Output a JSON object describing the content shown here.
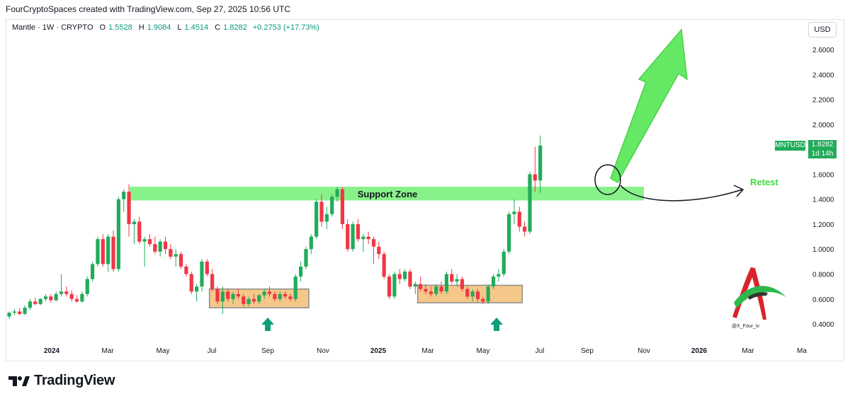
{
  "header": {
    "attribution": "FourCryptoSpaces created with TradingView.com, Sep 27, 2025 10:56 UTC"
  },
  "legend": {
    "symbol": "Mantle · 1W · CRYPTO",
    "o_label": "O",
    "o_value": "1.5528",
    "h_label": "H",
    "h_value": "1.9084",
    "l_label": "L",
    "l_value": "1.4514",
    "c_label": "C",
    "c_value": "1.8282",
    "change": "+0.2753 (+17.73%)"
  },
  "currency": "USD",
  "badge": {
    "ticker": "MNTUSD",
    "price": "1.8282",
    "countdown": "1d 14h"
  },
  "annotations": {
    "support_zone": "Support Zone",
    "retest": "Retest",
    "watermark": "@X_Four_iv"
  },
  "brand": {
    "name": "TradingView"
  },
  "colors": {
    "up": "#22ab5b",
    "down": "#f23645",
    "support_zone": "#7cf07c",
    "box": "#f5c88a",
    "arrow_green": "#5de85d",
    "teal_arrow": "#0f9d7a"
  },
  "chart_data": {
    "type": "candlestick",
    "symbol": "MNTUSD",
    "interval": "1W",
    "y_axis": {
      "ticks": [
        0.4,
        0.6,
        0.8,
        1.0,
        1.2,
        1.4,
        1.6,
        1.8,
        2.0,
        2.2,
        2.4,
        2.6
      ],
      "tick_labels": [
        "0.4000",
        "0.6000",
        "0.8000",
        "1.0000",
        "1.2000",
        "1.4000",
        "1.6000",
        "1.8000",
        "2.0000",
        "2.2000",
        "2.4000",
        "2.6000"
      ],
      "ylim": [
        0.38,
        2.76
      ]
    },
    "x_axis": {
      "tick_labels": [
        "2024",
        "Mar",
        "May",
        "Jul",
        "Sep",
        "Nov",
        "2025",
        "Mar",
        "May",
        "Jul",
        "Sep",
        "Nov",
        "2026",
        "Mar",
        "Ma"
      ],
      "bold": [
        "2024",
        "2025",
        "2026"
      ]
    },
    "support_zone": {
      "low": 1.39,
      "high": 1.5
    },
    "consolidation_boxes": [
      {
        "from_week": 39,
        "to_week": 57,
        "low": 0.53,
        "high": 0.68
      },
      {
        "from_week": 79,
        "to_week": 98,
        "low": 0.57,
        "high": 0.71
      }
    ],
    "candles": [
      [
        0.46,
        0.5,
        0.44,
        0.49
      ],
      [
        0.49,
        0.52,
        0.47,
        0.5
      ],
      [
        0.5,
        0.53,
        0.47,
        0.48
      ],
      [
        0.48,
        0.55,
        0.47,
        0.53
      ],
      [
        0.53,
        0.6,
        0.51,
        0.58
      ],
      [
        0.58,
        0.61,
        0.55,
        0.56
      ],
      [
        0.56,
        0.61,
        0.55,
        0.6
      ],
      [
        0.6,
        0.64,
        0.58,
        0.62
      ],
      [
        0.62,
        0.64,
        0.57,
        0.59
      ],
      [
        0.59,
        0.66,
        0.58,
        0.64
      ],
      [
        0.64,
        0.8,
        0.62,
        0.66
      ],
      [
        0.66,
        0.7,
        0.62,
        0.64
      ],
      [
        0.64,
        0.67,
        0.58,
        0.6
      ],
      [
        0.6,
        0.63,
        0.57,
        0.58
      ],
      [
        0.58,
        0.66,
        0.57,
        0.64
      ],
      [
        0.64,
        0.78,
        0.62,
        0.76
      ],
      [
        0.76,
        0.9,
        0.74,
        0.88
      ],
      [
        0.88,
        1.1,
        0.86,
        1.08
      ],
      [
        1.08,
        1.12,
        0.86,
        0.88
      ],
      [
        0.88,
        1.12,
        0.82,
        1.1
      ],
      [
        1.1,
        1.15,
        0.82,
        0.84
      ],
      [
        0.84,
        1.42,
        0.82,
        1.4
      ],
      [
        1.4,
        1.48,
        1.3,
        1.46
      ],
      [
        1.46,
        1.52,
        1.1,
        1.2
      ],
      [
        1.2,
        1.24,
        1.04,
        1.22
      ],
      [
        1.22,
        1.26,
        1.04,
        1.06
      ],
      [
        1.06,
        1.1,
        0.86,
        1.08
      ],
      [
        1.08,
        1.12,
        1.02,
        1.04
      ],
      [
        1.04,
        1.1,
        0.96,
        0.98
      ],
      [
        0.98,
        1.08,
        0.94,
        1.06
      ],
      [
        1.06,
        1.1,
        0.96,
        1.0
      ],
      [
        1.0,
        1.04,
        0.92,
        0.94
      ],
      [
        0.94,
        1.0,
        0.86,
        0.96
      ],
      [
        0.96,
        0.98,
        0.84,
        0.86
      ],
      [
        0.86,
        0.88,
        0.78,
        0.8
      ],
      [
        0.8,
        0.82,
        0.64,
        0.66
      ],
      [
        0.66,
        0.72,
        0.58,
        0.7
      ],
      [
        0.7,
        0.92,
        0.66,
        0.9
      ],
      [
        0.9,
        0.92,
        0.78,
        0.8
      ],
      [
        0.8,
        0.84,
        0.66,
        0.68
      ],
      [
        0.68,
        0.7,
        0.56,
        0.58
      ],
      [
        0.58,
        0.7,
        0.48,
        0.66
      ],
      [
        0.66,
        0.68,
        0.58,
        0.6
      ],
      [
        0.6,
        0.66,
        0.56,
        0.64
      ],
      [
        0.64,
        0.68,
        0.6,
        0.62
      ],
      [
        0.62,
        0.64,
        0.54,
        0.56
      ],
      [
        0.56,
        0.62,
        0.54,
        0.6
      ],
      [
        0.6,
        0.64,
        0.56,
        0.58
      ],
      [
        0.58,
        0.64,
        0.56,
        0.63
      ],
      [
        0.63,
        0.68,
        0.6,
        0.66
      ],
      [
        0.66,
        0.7,
        0.62,
        0.64
      ],
      [
        0.64,
        0.66,
        0.58,
        0.6
      ],
      [
        0.6,
        0.66,
        0.58,
        0.64
      ],
      [
        0.64,
        0.66,
        0.6,
        0.62
      ],
      [
        0.62,
        0.64,
        0.58,
        0.6
      ],
      [
        0.6,
        0.8,
        0.58,
        0.78
      ],
      [
        0.78,
        0.9,
        0.74,
        0.86
      ],
      [
        0.86,
        1.02,
        0.84,
        1.0
      ],
      [
        1.0,
        1.12,
        0.96,
        1.1
      ],
      [
        1.1,
        1.4,
        1.08,
        1.38
      ],
      [
        1.38,
        1.44,
        1.18,
        1.22
      ],
      [
        1.22,
        1.34,
        1.16,
        1.28
      ],
      [
        1.28,
        1.44,
        1.26,
        1.42
      ],
      [
        1.42,
        1.5,
        1.38,
        1.48
      ],
      [
        1.48,
        1.5,
        1.16,
        1.2
      ],
      [
        1.2,
        1.24,
        0.98,
        1.0
      ],
      [
        1.0,
        1.22,
        0.98,
        1.2
      ],
      [
        1.2,
        1.24,
        1.06,
        1.08
      ],
      [
        1.08,
        1.12,
        0.98,
        1.1
      ],
      [
        1.1,
        1.14,
        1.04,
        1.08
      ],
      [
        1.08,
        1.1,
        0.88,
        1.02
      ],
      [
        1.02,
        1.06,
        0.92,
        0.96
      ],
      [
        0.96,
        0.98,
        0.76,
        0.78
      ],
      [
        0.78,
        0.8,
        0.6,
        0.62
      ],
      [
        0.62,
        0.82,
        0.6,
        0.8
      ],
      [
        0.8,
        0.84,
        0.72,
        0.76
      ],
      [
        0.76,
        0.84,
        0.74,
        0.82
      ],
      [
        0.82,
        0.84,
        0.68,
        0.7
      ],
      [
        0.7,
        0.74,
        0.64,
        0.72
      ],
      [
        0.72,
        0.78,
        0.66,
        0.68
      ],
      [
        0.68,
        0.72,
        0.64,
        0.66
      ],
      [
        0.66,
        0.7,
        0.62,
        0.64
      ],
      [
        0.64,
        0.72,
        0.62,
        0.7
      ],
      [
        0.7,
        0.74,
        0.64,
        0.66
      ],
      [
        0.66,
        0.82,
        0.64,
        0.8
      ],
      [
        0.8,
        0.84,
        0.72,
        0.74
      ],
      [
        0.74,
        0.8,
        0.7,
        0.76
      ],
      [
        0.76,
        0.78,
        0.66,
        0.68
      ],
      [
        0.68,
        0.7,
        0.6,
        0.62
      ],
      [
        0.62,
        0.68,
        0.58,
        0.66
      ],
      [
        0.66,
        0.68,
        0.58,
        0.6
      ],
      [
        0.6,
        0.62,
        0.56,
        0.58
      ],
      [
        0.58,
        0.72,
        0.56,
        0.7
      ],
      [
        0.7,
        0.8,
        0.68,
        0.78
      ],
      [
        0.78,
        0.84,
        0.74,
        0.8
      ],
      [
        0.8,
        1.0,
        0.78,
        0.98
      ],
      [
        0.98,
        1.3,
        0.96,
        1.28
      ],
      [
        1.28,
        1.4,
        1.2,
        1.3
      ],
      [
        1.3,
        1.34,
        1.14,
        1.18
      ],
      [
        1.18,
        1.22,
        1.1,
        1.14
      ],
      [
        1.14,
        1.62,
        1.12,
        1.6
      ],
      [
        1.6,
        1.82,
        1.46,
        1.55
      ],
      [
        1.55,
        1.91,
        1.45,
        1.83
      ]
    ]
  }
}
